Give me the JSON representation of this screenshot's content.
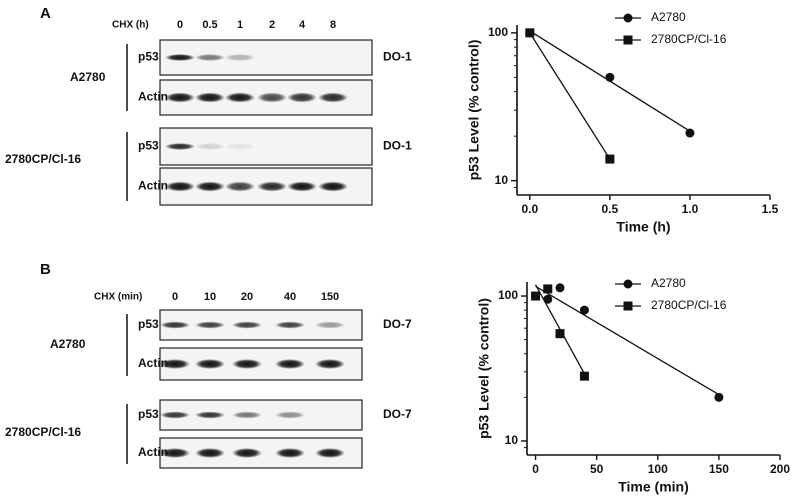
{
  "panel_labels": [
    "A",
    "B"
  ],
  "blots": [
    {
      "treatment_label": "CHX (h)",
      "timepoints": [
        "0",
        "0.5",
        "1",
        "2",
        "4",
        "8"
      ],
      "groups": [
        {
          "cell_line": "A2780",
          "rows": [
            "p53",
            "Actin"
          ],
          "antibody": "DO-1"
        },
        {
          "cell_line": "2780CP/Cl-16",
          "rows": [
            "p53",
            "Actin"
          ],
          "antibody": "DO-1"
        }
      ]
    },
    {
      "treatment_label": "CHX (min)",
      "timepoints": [
        "0",
        "10",
        "20",
        "40",
        "150"
      ],
      "groups": [
        {
          "cell_line": "A2780",
          "rows": [
            "p53",
            "Actin"
          ],
          "antibody": "DO-7"
        },
        {
          "cell_line": "2780CP/Cl-16",
          "rows": [
            "p53",
            "Actin"
          ],
          "antibody": "DO-7"
        }
      ]
    }
  ],
  "chart_data": [
    {
      "type": "scatter",
      "x_label": "Time (h)",
      "y_label": "p53 Level (% control)",
      "xlim": [
        -0.08,
        1.5
      ],
      "ylim": [
        8,
        113
      ],
      "log_y": true,
      "legend": "upper right",
      "xticks": [
        {
          "value": 0,
          "label": "0.0"
        },
        0.5,
        {
          "value": 1,
          "label": "1.0"
        },
        1.5
      ],
      "yticks": [
        10,
        100
      ],
      "series": [
        {
          "name": "A2780",
          "marker": "circle",
          "color": "#111111",
          "x": [
            0,
            0.5,
            1
          ],
          "values": [
            100,
            50,
            21
          ]
        },
        {
          "name": "2780CP/Cl-16",
          "marker": "square",
          "color": "#111111",
          "x": [
            0,
            0.5
          ],
          "values": [
            100,
            14
          ]
        }
      ]
    },
    {
      "type": "scatter",
      "x_label": "Time (min)",
      "y_label": "p53 Level (% control)",
      "xlim": [
        -7,
        200
      ],
      "ylim": [
        8,
        125
      ],
      "log_y": true,
      "legend": "upper right",
      "xticks": [
        0,
        50,
        100,
        150,
        200
      ],
      "yticks": [
        10,
        100
      ],
      "series": [
        {
          "name": "A2780",
          "marker": "circle",
          "color": "#111111",
          "x": [
            0,
            10,
            20,
            40,
            150
          ],
          "values": [
            100,
            95,
            114,
            80,
            20
          ]
        },
        {
          "name": "2780CP/Cl-16",
          "marker": "square",
          "color": "#111111",
          "x": [
            0,
            10,
            20,
            40
          ],
          "values": [
            100,
            112,
            55,
            28
          ]
        }
      ]
    }
  ]
}
